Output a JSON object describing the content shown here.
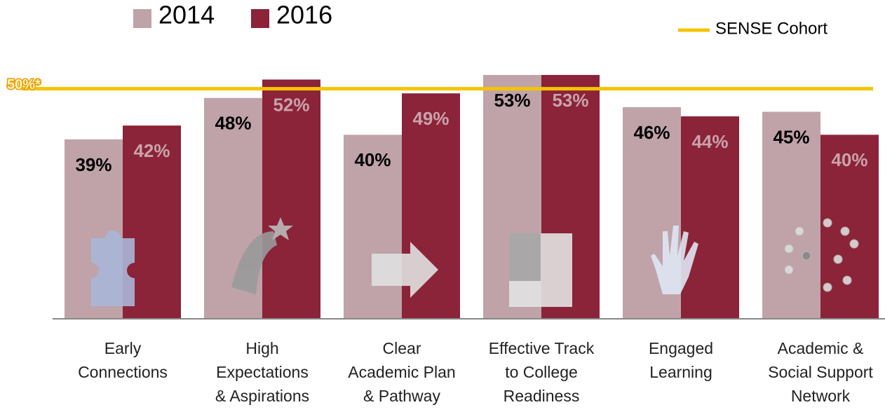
{
  "chart_data": {
    "type": "bar",
    "categories": [
      "Early\nConnections",
      "High\nExpectations\n& Aspirations",
      "Clear\nAcademic Plan\n& Pathway",
      "Effective Track\nto College\nReadiness",
      "Engaged\nLearning",
      "Academic &\nSocial Support\nNetwork"
    ],
    "series": [
      {
        "name": "2014",
        "color": "#bfa3a9",
        "values": [
          39,
          48,
          40,
          53,
          46,
          45
        ],
        "value_labels": [
          "39%",
          "48%",
          "40%",
          "53%",
          "46%",
          "45%"
        ]
      },
      {
        "name": "2016",
        "color": "#8b2339",
        "values": [
          42,
          52,
          49,
          53,
          44,
          40
        ],
        "value_labels": [
          "42%",
          "52%",
          "49%",
          "53%",
          "44%",
          "40%"
        ]
      }
    ],
    "reference": {
      "name": "SENSE Cohort",
      "value": 50,
      "label": "50%*",
      "color": "#f5c400"
    },
    "ylim": [
      0,
      60
    ]
  }
}
